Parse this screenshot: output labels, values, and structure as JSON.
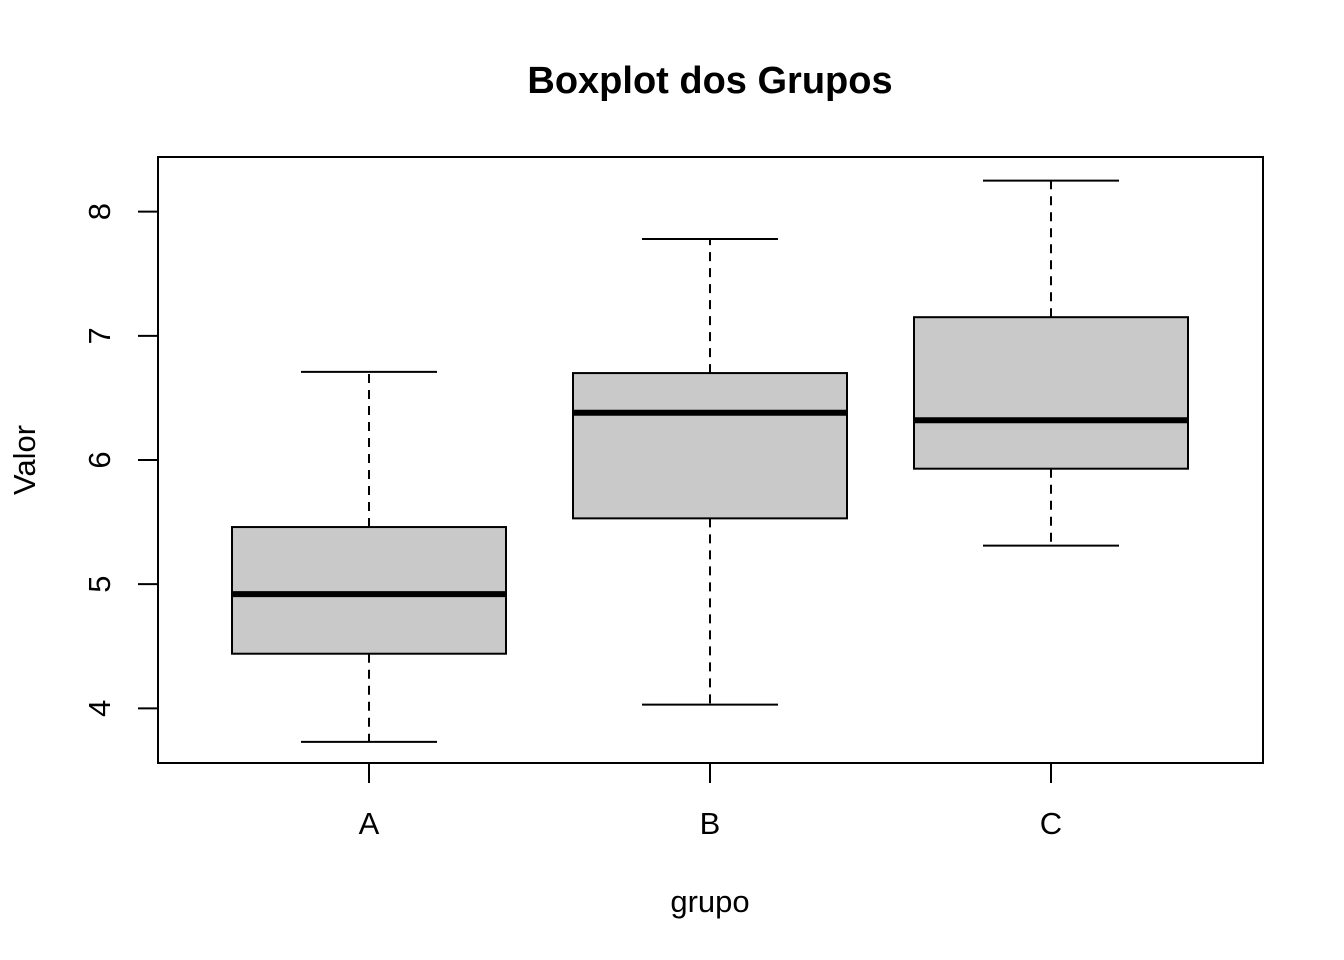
{
  "chart_data": {
    "type": "boxplot",
    "title": "Boxplot dos Grupos",
    "xlabel": "grupo",
    "ylabel": "Valor",
    "categories": [
      "A",
      "B",
      "C"
    ],
    "boxes": [
      {
        "category": "A",
        "whisker_low": 3.73,
        "q1": 4.44,
        "median": 4.92,
        "q3": 5.46,
        "whisker_high": 6.71
      },
      {
        "category": "B",
        "whisker_low": 4.03,
        "q1": 5.53,
        "median": 6.38,
        "q3": 6.7,
        "whisker_high": 7.78
      },
      {
        "category": "C",
        "whisker_low": 5.31,
        "q1": 5.93,
        "median": 6.32,
        "q3": 7.15,
        "whisker_high": 8.25
      }
    ],
    "yticks": [
      4,
      5,
      6,
      7,
      8
    ],
    "ylim": [
      3.56,
      8.44
    ],
    "grid": false,
    "colors": {
      "box_fill": "#c9c9c9",
      "stroke": "#000000"
    }
  }
}
